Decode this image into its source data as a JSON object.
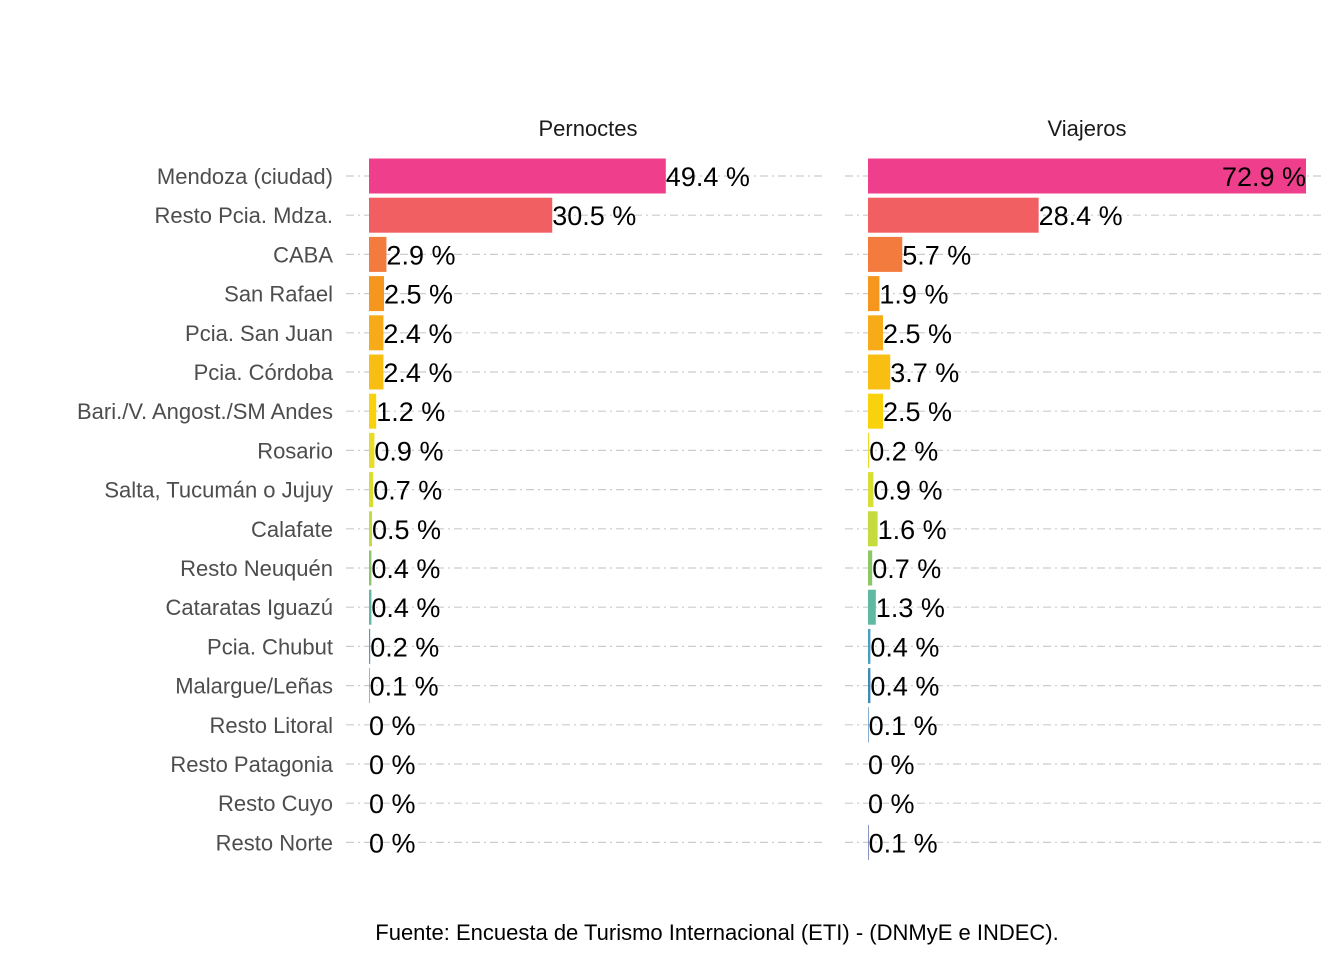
{
  "chart_data": {
    "type": "bar",
    "orientation": "horizontal",
    "categories": [
      "Mendoza (ciudad)",
      "Resto Pcia. Mdza.",
      "CABA",
      "San Rafael",
      "Pcia. San Juan",
      "Pcia. Córdoba",
      "Bari./V. Angost./SM Andes",
      "Rosario",
      "Salta, Tucumán o Jujuy",
      "Calafate",
      "Resto Neuquén",
      "Cataratas Iguazú",
      "Pcia. Chubut",
      "Malargue/Leñas",
      "Resto Litoral",
      "Resto Patagonia",
      "Resto Cuyo",
      "Resto Norte"
    ],
    "colors": [
      "#ef3f8c",
      "#f25f63",
      "#f47b3e",
      "#f5961f",
      "#f7ab18",
      "#f8bf12",
      "#f7d20d",
      "#e9dc24",
      "#d9de32",
      "#c6dc3e",
      "#8ec66a",
      "#5fb9a3",
      "#4b9ec0",
      "#3f8bb8",
      "#3a7ab0",
      "#3a6aa6",
      "#3d5c9c",
      "#405092"
    ],
    "panels": [
      {
        "title": "Pernoctes",
        "values": [
          49.4,
          30.5,
          2.9,
          2.5,
          2.4,
          2.4,
          1.2,
          0.9,
          0.7,
          0.5,
          0.4,
          0.4,
          0.2,
          0.1,
          0,
          0,
          0,
          0
        ],
        "labels": [
          "49.4 %",
          "30.5 %",
          "2.9 %",
          "2.5 %",
          "2.4 %",
          "2.4 %",
          "1.2 %",
          "0.9 %",
          "0.7 %",
          "0.5 %",
          "0.4 %",
          "0.4 %",
          "0.2 %",
          "0.1 %",
          "0 %",
          "0 %",
          "0 %",
          "0 %"
        ]
      },
      {
        "title": "Viajeros",
        "values": [
          72.9,
          28.4,
          5.7,
          1.9,
          2.5,
          3.7,
          2.5,
          0.2,
          0.9,
          1.6,
          0.7,
          1.3,
          0.4,
          0.4,
          0.1,
          0,
          0,
          0.1
        ],
        "labels": [
          "72.9 %",
          "28.4 %",
          "5.7 %",
          "1.9 %",
          "2.5 %",
          "3.7 %",
          "2.5 %",
          "0.2 %",
          "0.9 %",
          "1.6 %",
          "0.7 %",
          "1.3 %",
          "0.4 %",
          "0.4 %",
          "0.1 %",
          "0 %",
          "0 %",
          "0.1 %"
        ]
      }
    ],
    "xlim": [
      0,
      72.9
    ],
    "grid": "horizontal dashed",
    "legend": "none",
    "caption": "Fuente: Encuesta de Turismo Internacional (ETI) - (DNMyE e INDEC)."
  }
}
